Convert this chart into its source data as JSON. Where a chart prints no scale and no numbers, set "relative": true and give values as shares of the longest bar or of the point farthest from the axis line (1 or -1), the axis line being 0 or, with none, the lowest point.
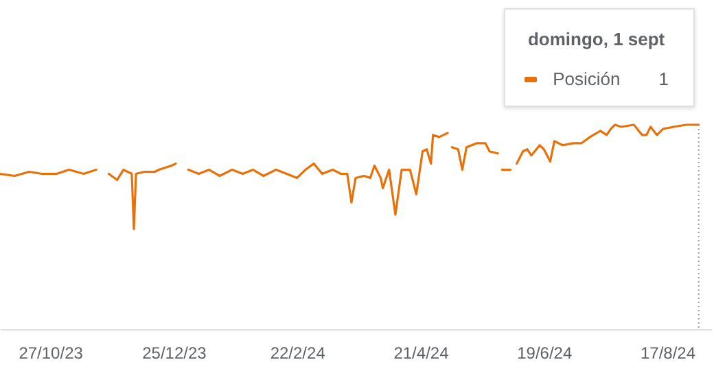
{
  "chart_data": {
    "type": "line",
    "relative": true,
    "legend": "top right",
    "line_style": "solid",
    "annotations": [
      "domingo, 1 sept",
      "1"
    ],
    "xlim": [
      "2023-10-03",
      "2024-09-07"
    ],
    "xticks": [
      {
        "value": "2023-10-27",
        "label": "27/10/23"
      },
      {
        "value": "2023-12-25",
        "label": "25/12/23"
      },
      {
        "value": "2024-02-22",
        "label": "22/2/24"
      },
      {
        "value": "2024-04-21",
        "label": "21/4/24"
      },
      {
        "value": "2024-06-19",
        "label": "19/6/24"
      },
      {
        "value": "2024-08-17",
        "label": "17/8/24"
      }
    ],
    "ref_lines": [
      {
        "axis": "x",
        "value": "2024-09-01",
        "color": "#9e9e9e",
        "line_style": "dotted"
      }
    ],
    "x": [
      "2023-10-03",
      "2023-10-10",
      "2023-10-17",
      "2023-10-23",
      "2023-10-30",
      "2023-11-05",
      "2023-11-12",
      "2023-11-18",
      "2023-11-21",
      "2023-11-24",
      "2023-11-28",
      "2023-12-01",
      "2023-12-05",
      "2023-12-06",
      "2023-12-07",
      "2023-12-11",
      "2023-12-16",
      "2023-12-18",
      "2023-12-21",
      "2023-12-24",
      "2023-12-26",
      "2023-12-29",
      "2024-01-01",
      "2024-01-06",
      "2024-01-11",
      "2024-01-16",
      "2024-01-22",
      "2024-01-27",
      "2024-02-01",
      "2024-02-06",
      "2024-02-12",
      "2024-02-17",
      "2024-02-22",
      "2024-02-26",
      "2024-03-01",
      "2024-03-05",
      "2024-03-10",
      "2024-03-14",
      "2024-03-17",
      "2024-03-19",
      "2024-03-21",
      "2024-03-25",
      "2024-03-28",
      "2024-03-30",
      "2024-04-02",
      "2024-04-03",
      "2024-04-06",
      "2024-04-09",
      "2024-04-12",
      "2024-04-16",
      "2024-04-19",
      "2024-04-22",
      "2024-04-24",
      "2024-04-26",
      "2024-04-27",
      "2024-04-30",
      "2024-05-04",
      "2024-05-05",
      "2024-05-06",
      "2024-05-09",
      "2024-05-11",
      "2024-05-13",
      "2024-05-18",
      "2024-05-22",
      "2024-05-24",
      "2024-05-28",
      "2024-05-29",
      "2024-05-30",
      "2024-06-03",
      "2024-06-04",
      "2024-06-06",
      "2024-06-09",
      "2024-06-11",
      "2024-06-13",
      "2024-06-17",
      "2024-06-19",
      "2024-06-22",
      "2024-06-24",
      "2024-06-28",
      "2024-07-03",
      "2024-07-07",
      "2024-07-11",
      "2024-07-16",
      "2024-07-19",
      "2024-07-21",
      "2024-07-22",
      "2024-07-23",
      "2024-07-26",
      "2024-08-01",
      "2024-08-05",
      "2024-08-07",
      "2024-08-09",
      "2024-08-12",
      "2024-08-15",
      "2024-08-20",
      "2024-08-26",
      "2024-09-01"
    ],
    "series": [
      {
        "name": "Posición",
        "color": "#e8710a",
        "values": [
          0.76,
          0.75,
          0.77,
          0.76,
          0.76,
          0.78,
          0.76,
          0.78,
          null,
          0.76,
          0.73,
          0.78,
          0.76,
          0.49,
          0.76,
          0.77,
          0.77,
          0.78,
          0.79,
          0.8,
          0.81,
          null,
          0.78,
          0.76,
          0.78,
          0.75,
          0.78,
          0.76,
          0.78,
          0.75,
          0.78,
          0.76,
          0.74,
          0.78,
          0.81,
          0.76,
          0.78,
          0.76,
          0.76,
          0.62,
          0.74,
          0.75,
          0.74,
          0.8,
          0.74,
          0.69,
          0.78,
          0.56,
          0.78,
          0.78,
          0.66,
          0.87,
          0.88,
          0.81,
          0.95,
          0.94,
          0.96,
          null,
          0.89,
          0.88,
          0.78,
          0.89,
          0.91,
          0.91,
          0.87,
          0.86,
          null,
          0.78,
          0.78,
          null,
          0.81,
          0.87,
          0.88,
          0.85,
          0.9,
          0.88,
          0.82,
          0.92,
          0.9,
          0.91,
          0.91,
          0.94,
          0.97,
          0.95,
          0.98,
          0.99,
          1.0,
          0.99,
          1.0,
          0.95,
          0.95,
          0.99,
          0.95,
          0.98,
          0.99,
          1.0,
          1.0
        ]
      }
    ]
  }
}
